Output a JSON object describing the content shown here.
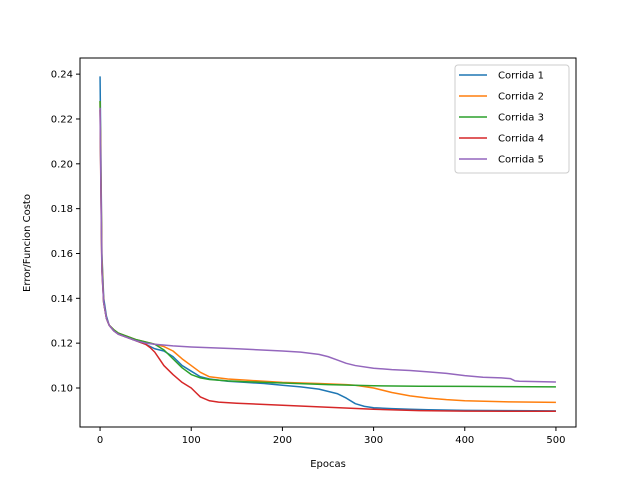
{
  "chart_data": {
    "type": "line",
    "title": "",
    "xlabel": "Epocas",
    "ylabel": "Error/Funcion Costo",
    "xlim": [
      -22,
      522
    ],
    "ylim": [
      0.0826,
      0.2472
    ],
    "xticks": [
      0,
      100,
      200,
      300,
      400,
      500
    ],
    "yticks": [
      0.1,
      0.12,
      0.14,
      0.16,
      0.18,
      0.2,
      0.22,
      0.24
    ],
    "ytick_labels": [
      "0.10",
      "0.12",
      "0.14",
      "0.16",
      "0.18",
      "0.20",
      "0.22",
      "0.24"
    ],
    "grid": false,
    "legend": "top-right",
    "series": [
      {
        "name": "Corrida 1",
        "color": "#1f77b4",
        "points": [
          [
            0,
            0.239
          ],
          [
            1,
            0.2
          ],
          [
            2,
            0.16
          ],
          [
            4,
            0.14
          ],
          [
            7,
            0.132
          ],
          [
            10,
            0.128
          ],
          [
            15,
            0.1255
          ],
          [
            20,
            0.124
          ],
          [
            30,
            0.1225
          ],
          [
            40,
            0.121
          ],
          [
            50,
            0.1195
          ],
          [
            55,
            0.1185
          ],
          [
            60,
            0.1175
          ],
          [
            70,
            0.1165
          ],
          [
            80,
            0.114
          ],
          [
            90,
            0.11
          ],
          [
            100,
            0.1075
          ],
          [
            110,
            0.105
          ],
          [
            120,
            0.104
          ],
          [
            140,
            0.103
          ],
          [
            160,
            0.1025
          ],
          [
            180,
            0.102
          ],
          [
            200,
            0.1012
          ],
          [
            220,
            0.1005
          ],
          [
            240,
            0.0995
          ],
          [
            260,
            0.0975
          ],
          [
            270,
            0.0955
          ],
          [
            280,
            0.093
          ],
          [
            290,
            0.0918
          ],
          [
            300,
            0.0912
          ],
          [
            320,
            0.0908
          ],
          [
            340,
            0.0905
          ],
          [
            360,
            0.0903
          ],
          [
            400,
            0.09
          ],
          [
            450,
            0.0899
          ],
          [
            500,
            0.0898
          ]
        ]
      },
      {
        "name": "Corrida 2",
        "color": "#ff7f0e",
        "points": [
          [
            0,
            0.228
          ],
          [
            1,
            0.195
          ],
          [
            2,
            0.158
          ],
          [
            4,
            0.138
          ],
          [
            7,
            0.131
          ],
          [
            10,
            0.128
          ],
          [
            15,
            0.126
          ],
          [
            20,
            0.1245
          ],
          [
            30,
            0.123
          ],
          [
            40,
            0.1215
          ],
          [
            50,
            0.1205
          ],
          [
            60,
            0.1195
          ],
          [
            70,
            0.1185
          ],
          [
            80,
            0.1165
          ],
          [
            90,
            0.113
          ],
          [
            100,
            0.11
          ],
          [
            110,
            0.107
          ],
          [
            120,
            0.105
          ],
          [
            140,
            0.104
          ],
          [
            160,
            0.1035
          ],
          [
            200,
            0.1025
          ],
          [
            240,
            0.102
          ],
          [
            270,
            0.1015
          ],
          [
            280,
            0.1012
          ],
          [
            300,
            0.1
          ],
          [
            320,
            0.098
          ],
          [
            340,
            0.0965
          ],
          [
            360,
            0.0955
          ],
          [
            380,
            0.0948
          ],
          [
            400,
            0.0943
          ],
          [
            450,
            0.0938
          ],
          [
            500,
            0.0936
          ]
        ]
      },
      {
        "name": "Corrida 3",
        "color": "#2ca02c",
        "points": [
          [
            0,
            0.228
          ],
          [
            1,
            0.19
          ],
          [
            2,
            0.155
          ],
          [
            4,
            0.138
          ],
          [
            7,
            0.131
          ],
          [
            10,
            0.128
          ],
          [
            15,
            0.126
          ],
          [
            20,
            0.1245
          ],
          [
            30,
            0.123
          ],
          [
            40,
            0.1215
          ],
          [
            50,
            0.1205
          ],
          [
            60,
            0.1195
          ],
          [
            70,
            0.117
          ],
          [
            80,
            0.113
          ],
          [
            90,
            0.109
          ],
          [
            100,
            0.106
          ],
          [
            110,
            0.1045
          ],
          [
            120,
            0.1038
          ],
          [
            140,
            0.1032
          ],
          [
            160,
            0.1028
          ],
          [
            200,
            0.1022
          ],
          [
            250,
            0.1015
          ],
          [
            300,
            0.101
          ],
          [
            350,
            0.1008
          ],
          [
            400,
            0.1007
          ],
          [
            450,
            0.1006
          ],
          [
            500,
            0.1005
          ]
        ]
      },
      {
        "name": "Corrida 4",
        "color": "#d62728",
        "points": [
          [
            0,
            0.224
          ],
          [
            1,
            0.185
          ],
          [
            2,
            0.152
          ],
          [
            4,
            0.138
          ],
          [
            7,
            0.131
          ],
          [
            10,
            0.128
          ],
          [
            15,
            0.1255
          ],
          [
            20,
            0.124
          ],
          [
            30,
            0.1225
          ],
          [
            40,
            0.121
          ],
          [
            50,
            0.1195
          ],
          [
            55,
            0.118
          ],
          [
            60,
            0.116
          ],
          [
            65,
            0.113
          ],
          [
            70,
            0.11
          ],
          [
            80,
            0.106
          ],
          [
            90,
            0.1025
          ],
          [
            100,
            0.1
          ],
          [
            105,
            0.098
          ],
          [
            110,
            0.096
          ],
          [
            120,
            0.0943
          ],
          [
            130,
            0.0937
          ],
          [
            150,
            0.0932
          ],
          [
            200,
            0.0923
          ],
          [
            250,
            0.0914
          ],
          [
            300,
            0.0905
          ],
          [
            350,
            0.0899
          ],
          [
            400,
            0.0897
          ],
          [
            450,
            0.0896
          ],
          [
            500,
            0.0896
          ]
        ]
      },
      {
        "name": "Corrida 5",
        "color": "#9467bd",
        "points": [
          [
            0,
            0.225
          ],
          [
            1,
            0.188
          ],
          [
            2,
            0.153
          ],
          [
            4,
            0.138
          ],
          [
            7,
            0.131
          ],
          [
            10,
            0.128
          ],
          [
            15,
            0.1255
          ],
          [
            20,
            0.124
          ],
          [
            30,
            0.1225
          ],
          [
            40,
            0.121
          ],
          [
            50,
            0.12
          ],
          [
            60,
            0.1195
          ],
          [
            80,
            0.1188
          ],
          [
            100,
            0.1183
          ],
          [
            150,
            0.1175
          ],
          [
            200,
            0.1165
          ],
          [
            220,
            0.116
          ],
          [
            240,
            0.115
          ],
          [
            250,
            0.114
          ],
          [
            260,
            0.1125
          ],
          [
            270,
            0.111
          ],
          [
            280,
            0.11
          ],
          [
            300,
            0.1088
          ],
          [
            320,
            0.1082
          ],
          [
            340,
            0.1078
          ],
          [
            360,
            0.1072
          ],
          [
            380,
            0.1065
          ],
          [
            400,
            0.1055
          ],
          [
            420,
            0.1048
          ],
          [
            440,
            0.1045
          ],
          [
            450,
            0.1042
          ],
          [
            455,
            0.1032
          ],
          [
            460,
            0.103
          ],
          [
            500,
            0.1027
          ]
        ]
      }
    ]
  }
}
